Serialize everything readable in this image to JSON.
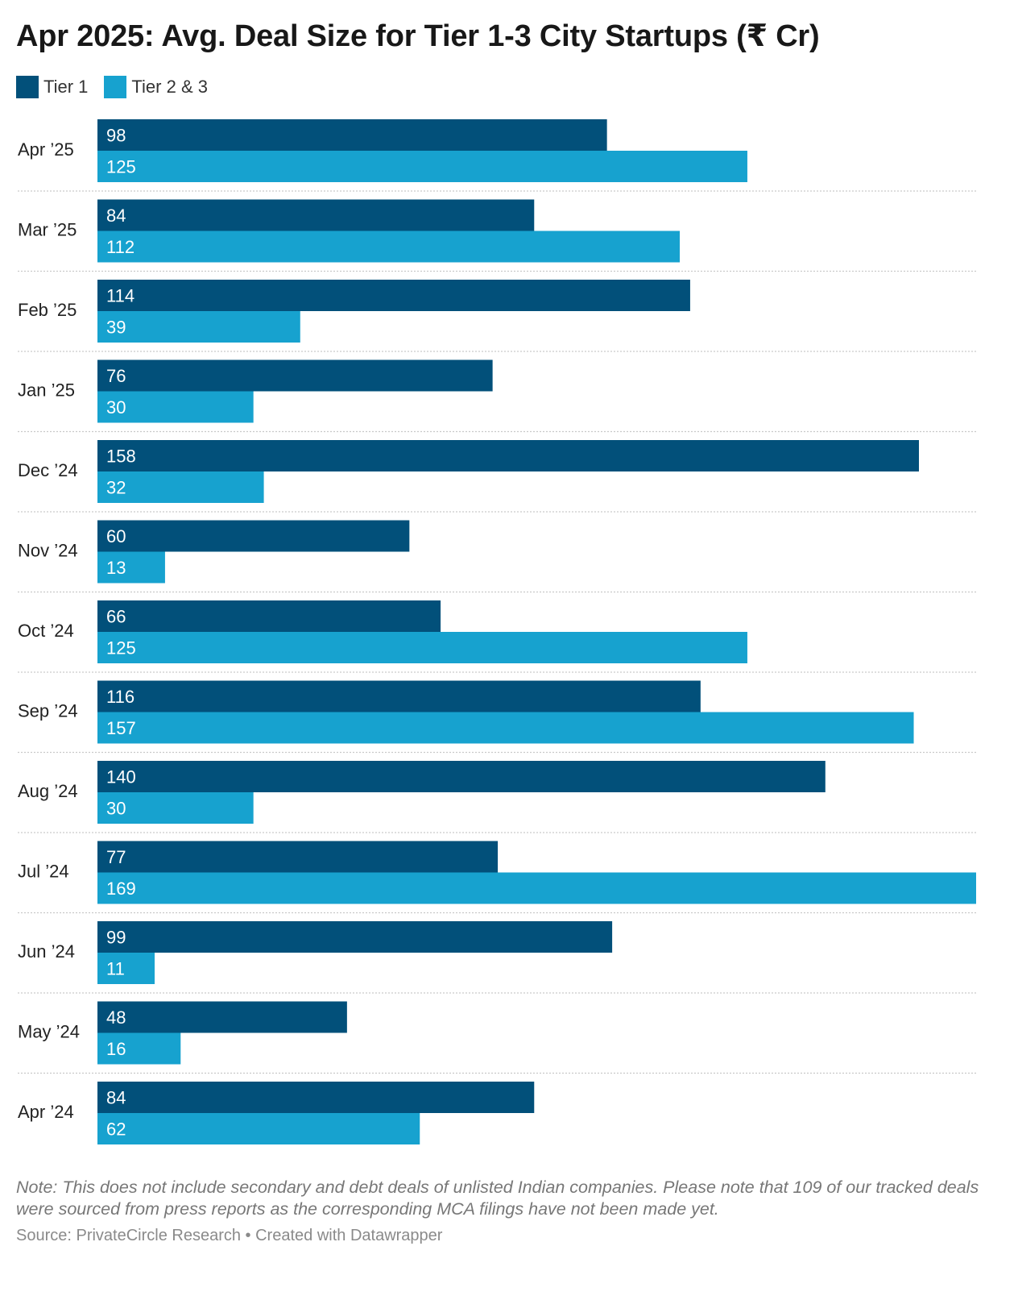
{
  "chart_data": {
    "type": "bar",
    "orientation": "horizontal",
    "title": "Apr 2025: Avg. Deal Size for Tier 1-3 City Startups (₹ Cr)",
    "categories": [
      "Apr ’25",
      "Mar ’25",
      "Feb ’25",
      "Jan ’25",
      "Dec ’24",
      "Nov ’24",
      "Oct ’24",
      "Sep ’24",
      "Aug ’24",
      "Jul ’24",
      "Jun ’24",
      "May ’24",
      "Apr ’24"
    ],
    "series": [
      {
        "name": "Tier 1",
        "color": "#02507a",
        "values": [
          98,
          84,
          114,
          76,
          158,
          60,
          66,
          116,
          140,
          77,
          99,
          48,
          84
        ]
      },
      {
        "name": "Tier 2 & 3",
        "color": "#17a2cf",
        "values": [
          125,
          112,
          39,
          30,
          32,
          13,
          125,
          157,
          30,
          169,
          11,
          16,
          62
        ]
      }
    ],
    "xlim": [
      0,
      169
    ],
    "legend_position": "top-left",
    "grid": false,
    "note": "Note: This does not include secondary and debt deals of unlisted Indian companies. Please note that 109 of our tracked deals were sourced from press reports as the corresponding MCA filings have not been made yet.",
    "source": "Source: PrivateCircle Research • Created with Datawrapper"
  }
}
